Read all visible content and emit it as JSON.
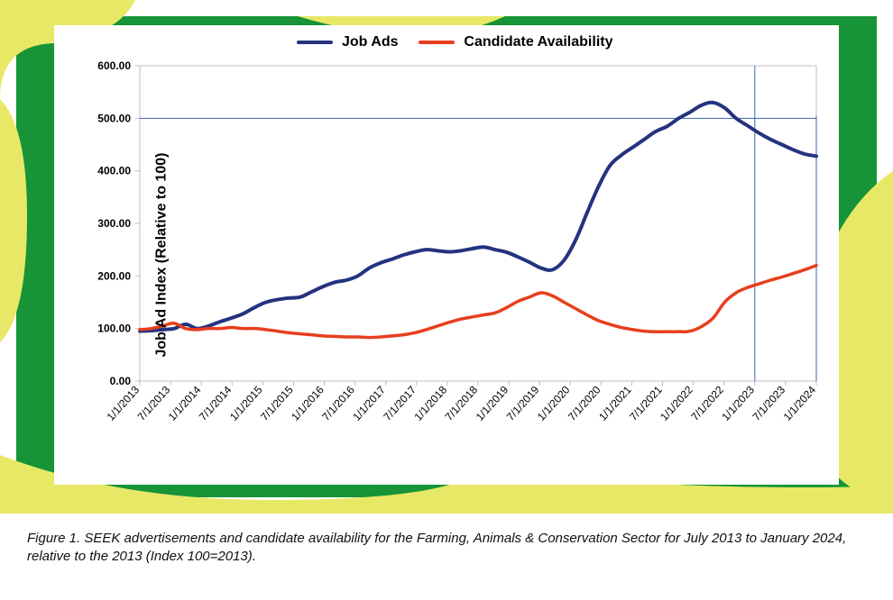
{
  "frame": {
    "green": "#169437",
    "yellow": "#e8e867",
    "bg_white": "#ffffff"
  },
  "caption": "Figure 1. SEEK advertisements and candidate availability for the Farming, Animals & Conservation Sector for July 2013 to January 2024, relative to the 2013 (Index 100=2013).",
  "chart": {
    "type": "line",
    "y_axis_label": "Job Ad Index (Relative to 100)",
    "background_color": "#ffffff",
    "axis_color": "#bfbfbf",
    "gridline_color": "#c8c8c8",
    "tick_font_size": 12,
    "label_font_size": 16,
    "ylim": [
      0,
      600
    ],
    "ytick_step": 100,
    "yticks": [
      "0.00",
      "100.00",
      "200.00",
      "300.00",
      "400.00",
      "500.00",
      "600.00"
    ],
    "x_labels": [
      "1/1/2013",
      "7/1/2013",
      "1/1/2014",
      "7/1/2014",
      "1/1/2015",
      "7/1/2015",
      "1/1/2016",
      "7/1/2016",
      "1/1/2017",
      "7/1/2017",
      "1/1/2018",
      "7/1/2018",
      "1/1/2019",
      "7/1/2019",
      "1/1/2020",
      "7/1/2020",
      "1/1/2021",
      "7/1/2021",
      "1/1/2022",
      "7/1/2022",
      "1/1/2023",
      "7/1/2023",
      "1/1/2024"
    ],
    "reference_lines": {
      "color": "#3a66b5",
      "width": 1,
      "horizontal_y": 500,
      "vertical_x_index": 20,
      "vertical_x_index_end": 22
    },
    "series": [
      {
        "name": "Job Ads",
        "color": "#24337f",
        "line_width": 4,
        "values": [
          95,
          96,
          98,
          100,
          108,
          100,
          105,
          113,
          120,
          128,
          140,
          150,
          155,
          158,
          160,
          170,
          180,
          188,
          192,
          200,
          215,
          225,
          232,
          240,
          246,
          250,
          248,
          246,
          248,
          252,
          255,
          250,
          245,
          236,
          226,
          215,
          212,
          230,
          268,
          320,
          370,
          410,
          430,
          445,
          460,
          475,
          485,
          500,
          512,
          525,
          530,
          520,
          500,
          486,
          472,
          460,
          450,
          440,
          432,
          428
        ]
      },
      {
        "name": "Candidate Availability",
        "color": "#e83e1d",
        "line_width": 3.5,
        "values": [
          98,
          100,
          105,
          110,
          100,
          98,
          100,
          100,
          102,
          100,
          100,
          98,
          95,
          92,
          90,
          88,
          86,
          85,
          84,
          84,
          83,
          84,
          86,
          88,
          92,
          98,
          105,
          112,
          118,
          122,
          126,
          130,
          140,
          152,
          160,
          168,
          162,
          150,
          138,
          126,
          115,
          108,
          102,
          98,
          95,
          94,
          94,
          94,
          95,
          104,
          120,
          150,
          168,
          178,
          185,
          192,
          198,
          205,
          212,
          220
        ]
      }
    ],
    "legend_font_size": 16,
    "legend_font_weight": "bold"
  }
}
